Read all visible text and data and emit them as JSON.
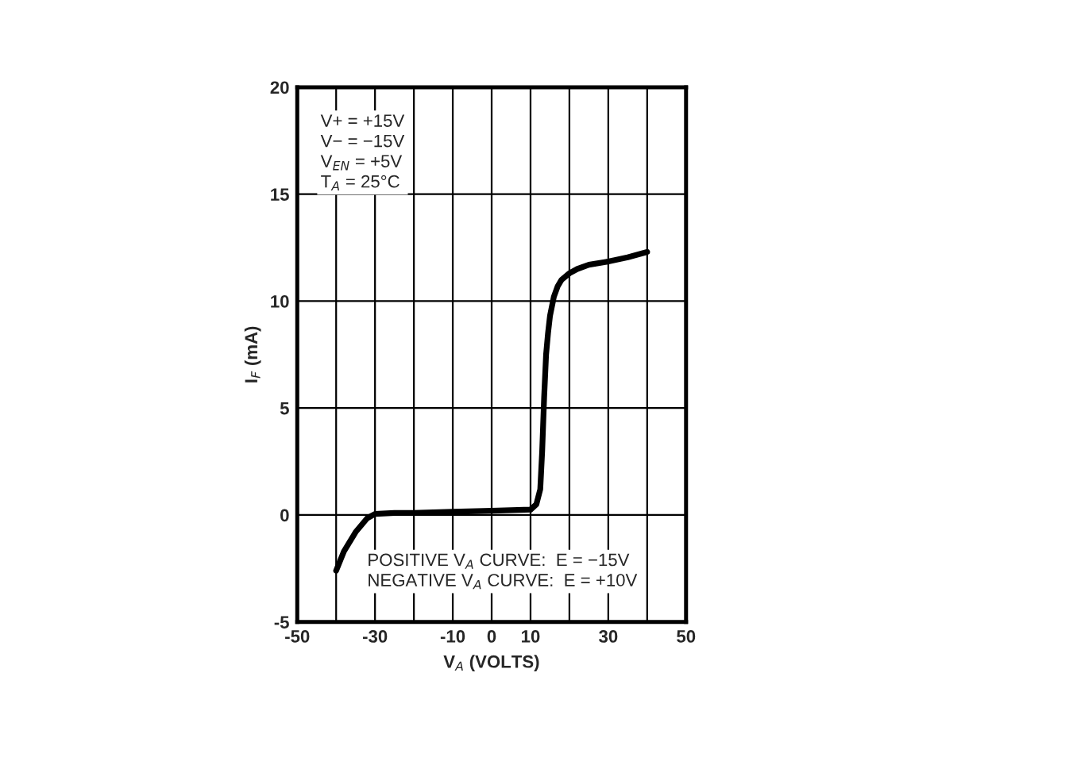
{
  "chart_data": {
    "type": "line",
    "xlabel": "V$_{A}$ (VOLTS)",
    "ylabel": "I$_{F}$ (mA)",
    "x": [
      -40,
      -38,
      -35,
      -32,
      -30,
      -25,
      -20,
      -10,
      0,
      10,
      11.5,
      12.5,
      13,
      13.5,
      14,
      14.5,
      15,
      16,
      17,
      18,
      20,
      22,
      25,
      30,
      35,
      40
    ],
    "series": [
      {
        "color": "#000000",
        "values": [
          -2.6,
          -1.7,
          -0.8,
          -0.15,
          0.05,
          0.1,
          0.1,
          0.15,
          0.2,
          0.25,
          0.5,
          1.2,
          3,
          5.5,
          7.5,
          8.5,
          9.3,
          10.2,
          10.7,
          11.0,
          11.3,
          11.5,
          11.7,
          11.85,
          12.05,
          12.3
        ]
      }
    ],
    "xlim": [
      -50,
      50
    ],
    "ylim": [
      -5,
      20
    ],
    "xticks": [
      -50,
      {
        "value": -40,
        "label": null
      },
      -30,
      {
        "value": -20,
        "label": null
      },
      -10,
      0,
      10,
      {
        "value": 20,
        "label": null
      },
      30,
      {
        "value": 40,
        "label": null
      },
      50
    ],
    "yticks": [
      -5,
      0,
      5,
      10,
      15,
      20
    ],
    "grid": true,
    "marker": "none",
    "line_style": "solid",
    "legend": false,
    "annotations": [
      "V+ = +15V\nV− = −15V\nV$_{EN}$ = +5V\nT$_{A}$ = 25°C",
      "POSITIVE V$_{A}$ CURVE:  E = −15V\nNEGATIVE V$_{A}$ CURVE:  E = +10V"
    ]
  }
}
